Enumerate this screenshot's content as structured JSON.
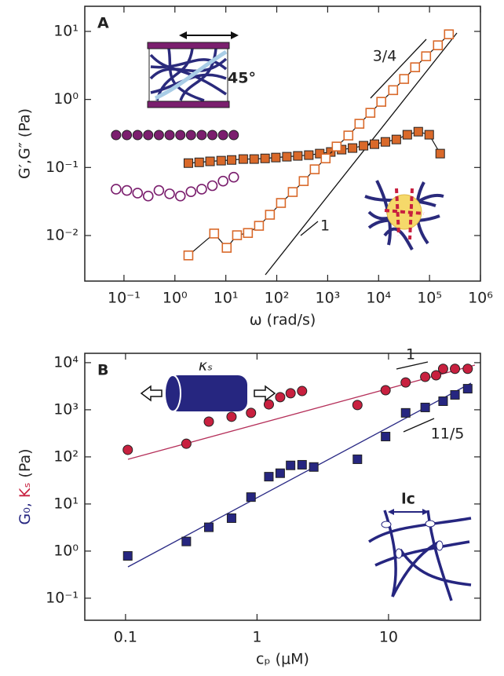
{
  "chart_data": [
    {
      "type": "scatter",
      "panel_label": "A",
      "xlabel": "ω (rad/s)",
      "ylabel": "G′,G″ (Pa)",
      "xlog": true,
      "ylog": true,
      "xlim": [
        0.017,
        1000000
      ],
      "ylim": [
        0.00214,
        23.4
      ],
      "xticks": [
        {
          "value": 0.1,
          "label": "10⁻¹"
        },
        {
          "value": 1,
          "label": "10⁰"
        },
        {
          "value": 10,
          "label": "10¹"
        },
        {
          "value": 100,
          "label": "10²"
        },
        {
          "value": 1000,
          "label": "10³"
        },
        {
          "value": 10000,
          "label": "10⁴"
        },
        {
          "value": 100000,
          "label": "10⁵"
        },
        {
          "value": 1000000,
          "label": "10⁶"
        }
      ],
      "yticks": [
        {
          "value": 0.01,
          "label": "10⁻²"
        },
        {
          "value": 0.1,
          "label": "10⁻¹"
        },
        {
          "value": 1,
          "label": "10⁰"
        },
        {
          "value": 10,
          "label": "10¹"
        }
      ],
      "series": [
        {
          "color": "#7b1f6e",
          "marker": "circle",
          "filled": true,
          "line": false,
          "x": [
            0.07,
            0.114,
            0.185,
            0.299,
            0.485,
            0.787,
            1.28,
            2.07,
            3.36,
            5.44,
            8.83,
            14.3
          ],
          "values": [
            0.3,
            0.3,
            0.3,
            0.3,
            0.3,
            0.3,
            0.3,
            0.3,
            0.3,
            0.3,
            0.3,
            0.3
          ]
        },
        {
          "color": "#7b1f6e",
          "marker": "circle",
          "filled": false,
          "line": false,
          "x": [
            0.07,
            0.114,
            0.185,
            0.299,
            0.485,
            0.787,
            1.28,
            2.07,
            3.36,
            5.44,
            8.83,
            14.3
          ],
          "values": [
            0.048,
            0.046,
            0.042,
            0.038,
            0.046,
            0.041,
            0.038,
            0.044,
            0.048,
            0.054,
            0.063,
            0.072
          ]
        },
        {
          "color": "#d9692a",
          "marker": "square",
          "filled": true,
          "line": true,
          "x": [
            1.84,
            3,
            4.9,
            8.1,
            13,
            22,
            36,
            59,
            96,
            158,
            259,
            426,
            698,
            1150,
            1880,
            3080,
            5060,
            8300,
            13600,
            22300,
            36600,
            60100,
            98600,
            162000
          ],
          "values": [
            0.116,
            0.119,
            0.123,
            0.126,
            0.129,
            0.133,
            0.133,
            0.136,
            0.14,
            0.144,
            0.148,
            0.152,
            0.16,
            0.169,
            0.183,
            0.193,
            0.209,
            0.22,
            0.238,
            0.258,
            0.303,
            0.336,
            0.303,
            0.16
          ]
        },
        {
          "color": "#d9692a",
          "marker": "square",
          "filled": false,
          "line": true,
          "x": [
            1.84,
            5.9,
            10.4,
            16.6,
            27.2,
            44.8,
            73.5,
            121,
            206,
            338,
            556,
            912,
            1500,
            2550,
            4200,
            6900,
            11300,
            19300,
            31700,
            52100,
            85700,
            146000,
            240000
          ],
          "values": [
            0.0051,
            0.0107,
            0.0066,
            0.0101,
            0.0109,
            0.0139,
            0.0202,
            0.0301,
            0.0436,
            0.0631,
            0.094,
            0.136,
            0.203,
            0.295,
            0.439,
            0.636,
            0.923,
            1.37,
            2.0,
            2.97,
            4.31,
            6.25,
            9.06
          ]
        }
      ],
      "annotations": [
        "3/4",
        "1",
        "45°"
      ]
    },
    {
      "type": "scatter",
      "panel_label": "B",
      "xlabel": "cₚ (μM)",
      "ylabel": [
        "G₀,",
        "Kₛ",
        "(Pa)"
      ],
      "xlog": true,
      "ylog": true,
      "xlim": [
        0.049,
        50
      ],
      "ylim": [
        0.034,
        15800
      ],
      "xticks": [
        0.1,
        1,
        10
      ],
      "yticks": [
        {
          "value": 0.1,
          "label": "10⁻¹"
        },
        {
          "value": 1,
          "label": "10⁰"
        },
        {
          "value": 10,
          "label": "10¹"
        },
        {
          "value": 100,
          "label": "10²"
        },
        {
          "value": 1000,
          "label": "10³"
        },
        {
          "value": 10000,
          "label": "10⁴"
        }
      ],
      "series": [
        {
          "color": "#c8203f",
          "marker": "circle",
          "filled": true,
          "line": false,
          "x": [
            0.104,
            0.29,
            0.43,
            0.64,
            0.9,
            1.23,
            1.5,
            1.8,
            2.2,
            5.8,
            9.5,
            13.5,
            19,
            23,
            26,
            32,
            40
          ],
          "values": [
            141,
            190,
            560,
            710,
            860,
            1300,
            1850,
            2240,
            2500,
            1260,
            2600,
            3800,
            5000,
            5400,
            7400,
            7400,
            7400
          ]
        },
        {
          "color": "#262680",
          "marker": "square",
          "filled": true,
          "line": false,
          "x": [
            0.104,
            0.29,
            0.43,
            0.64,
            0.9,
            1.23,
            1.5,
            1.8,
            2.2,
            2.7,
            5.8,
            9.5,
            13.5,
            19,
            26,
            32,
            40
          ],
          "values": [
            0.79,
            1.6,
            3.2,
            5,
            14,
            38,
            45,
            66,
            68,
            61,
            89,
            270,
            860,
            1120,
            1520,
            2070,
            2800
          ]
        }
      ],
      "annotations": [
        "1",
        "11/5",
        "κₛ",
        "lc"
      ]
    }
  ]
}
